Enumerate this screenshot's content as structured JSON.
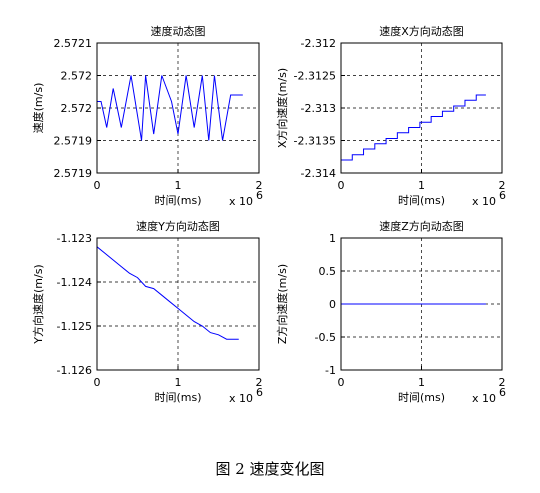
{
  "chart_data": [
    {
      "type": "line",
      "title": "速度动态图",
      "xlabel": "时间(ms)",
      "ylabel": "速度(m/s)",
      "x_multiplier": "x 10",
      "x_exponent": "6",
      "xlim": [
        0,
        2
      ],
      "xticks": [
        0,
        1,
        2
      ],
      "ylim": [
        2.57185,
        2.57205
      ],
      "yticks": [
        {
          "value": 2.57185,
          "label": "2.5719"
        },
        {
          "value": 2.5719,
          "label": "2.5719"
        },
        {
          "value": 2.57195,
          "label": "2.572"
        },
        {
          "value": 2.572,
          "label": "2.572"
        },
        {
          "value": 2.57205,
          "label": "2.5721"
        }
      ],
      "grid": true,
      "series": [
        {
          "color": "#0000ff",
          "x": [
            0,
            0.05,
            0.12,
            0.2,
            0.3,
            0.42,
            0.55,
            0.6,
            0.7,
            0.8,
            0.92,
            1.0,
            1.1,
            1.2,
            1.3,
            1.38,
            1.45,
            1.55,
            1.65,
            1.72,
            1.8
          ],
          "values": [
            2.57196,
            2.57196,
            2.57192,
            2.57198,
            2.57192,
            2.572,
            2.5719,
            2.572,
            2.57191,
            2.572,
            2.57196,
            2.57191,
            2.572,
            2.57192,
            2.572,
            2.5719,
            2.572,
            2.5719,
            2.57197,
            2.57197,
            2.57197
          ]
        }
      ]
    },
    {
      "type": "line",
      "title": "速度X方向动态图",
      "xlabel": "时间(ms)",
      "ylabel": "X方向速度(m/s)",
      "x_multiplier": "x 10",
      "x_exponent": "6",
      "xlim": [
        0,
        2
      ],
      "xticks": [
        0,
        1,
        2
      ],
      "ylim": [
        -2.314,
        -2.312
      ],
      "yticks": [
        -2.314,
        -2.3135,
        -2.313,
        -2.3125,
        -2.312
      ],
      "grid": true,
      "series": [
        {
          "color": "#0000ff",
          "x": [
            0,
            0.14,
            0.14,
            0.28,
            0.28,
            0.42,
            0.42,
            0.56,
            0.56,
            0.7,
            0.7,
            0.84,
            0.84,
            0.98,
            0.98,
            1.12,
            1.12,
            1.26,
            1.26,
            1.4,
            1.4,
            1.54,
            1.54,
            1.68,
            1.68,
            1.8
          ],
          "values": [
            -2.3138,
            -2.3138,
            -2.31372,
            -2.31372,
            -2.31363,
            -2.31363,
            -2.31355,
            -2.31355,
            -2.31347,
            -2.31347,
            -2.31338,
            -2.31338,
            -2.3133,
            -2.3133,
            -2.31322,
            -2.31322,
            -2.31313,
            -2.31313,
            -2.31305,
            -2.31305,
            -2.31297,
            -2.31297,
            -2.31288,
            -2.31288,
            -2.3128,
            -2.3128
          ]
        }
      ]
    },
    {
      "type": "line",
      "title": "速度Y方向动态图",
      "xlabel": "时间(ms)",
      "ylabel": "Y方向速度(m/s)",
      "x_multiplier": "x 10",
      "x_exponent": "6",
      "xlim": [
        0,
        2
      ],
      "xticks": [
        0,
        1,
        2
      ],
      "ylim": [
        -1.126,
        -1.123
      ],
      "yticks": [
        -1.126,
        -1.125,
        -1.124,
        -1.123
      ],
      "grid": true,
      "series": [
        {
          "color": "#0000ff",
          "x": [
            0,
            0.1,
            0.2,
            0.3,
            0.4,
            0.5,
            0.6,
            0.7,
            0.8,
            0.9,
            1.0,
            1.1,
            1.2,
            1.3,
            1.4,
            1.5,
            1.6,
            1.7,
            1.75
          ],
          "values": [
            -1.1232,
            -1.12335,
            -1.1235,
            -1.12365,
            -1.1238,
            -1.1239,
            -1.1241,
            -1.12415,
            -1.1243,
            -1.12445,
            -1.1246,
            -1.12475,
            -1.1249,
            -1.125,
            -1.12515,
            -1.1252,
            -1.1253,
            -1.1253,
            -1.1253
          ]
        }
      ]
    },
    {
      "type": "line",
      "title": "速度Z方向动态图",
      "xlabel": "时间(ms)",
      "ylabel": "Z方向速度(m/s)",
      "x_multiplier": "x 10",
      "x_exponent": "6",
      "xlim": [
        0,
        2
      ],
      "xticks": [
        0,
        1,
        2
      ],
      "ylim": [
        -1,
        1
      ],
      "yticks": [
        -1,
        -0.5,
        0,
        0.5,
        1
      ],
      "grid": true,
      "series": [
        {
          "color": "#0000ff",
          "x": [
            0,
            1.8
          ],
          "values": [
            0,
            0
          ]
        }
      ]
    }
  ],
  "caption": "图 2  速度变化图"
}
